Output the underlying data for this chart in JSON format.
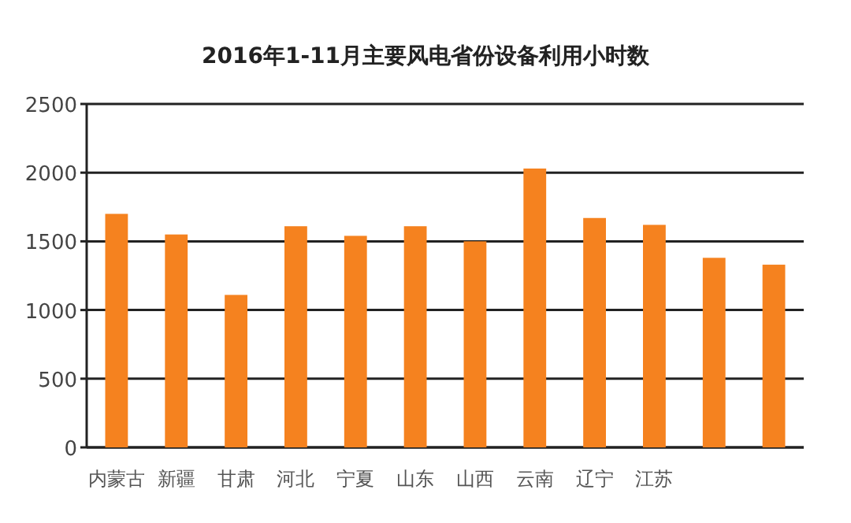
{
  "chart_data": {
    "type": "bar",
    "title": "2016年1-11月主要风电省份设备利用小时数",
    "categories": [
      "内蒙古",
      "新疆",
      "甘肃",
      "河北",
      "宁夏",
      "山东",
      "山西",
      "云南",
      "辽宁",
      "江苏",
      null,
      null
    ],
    "values": [
      1700,
      1550,
      1110,
      1610,
      1540,
      1610,
      1500,
      2030,
      1670,
      1620,
      1380,
      1330
    ],
    "color": "#f5821f",
    "ylim": [
      0,
      2500
    ],
    "yticks": [
      0,
      500,
      1000,
      1500,
      2000,
      2500
    ],
    "grid": "y"
  }
}
